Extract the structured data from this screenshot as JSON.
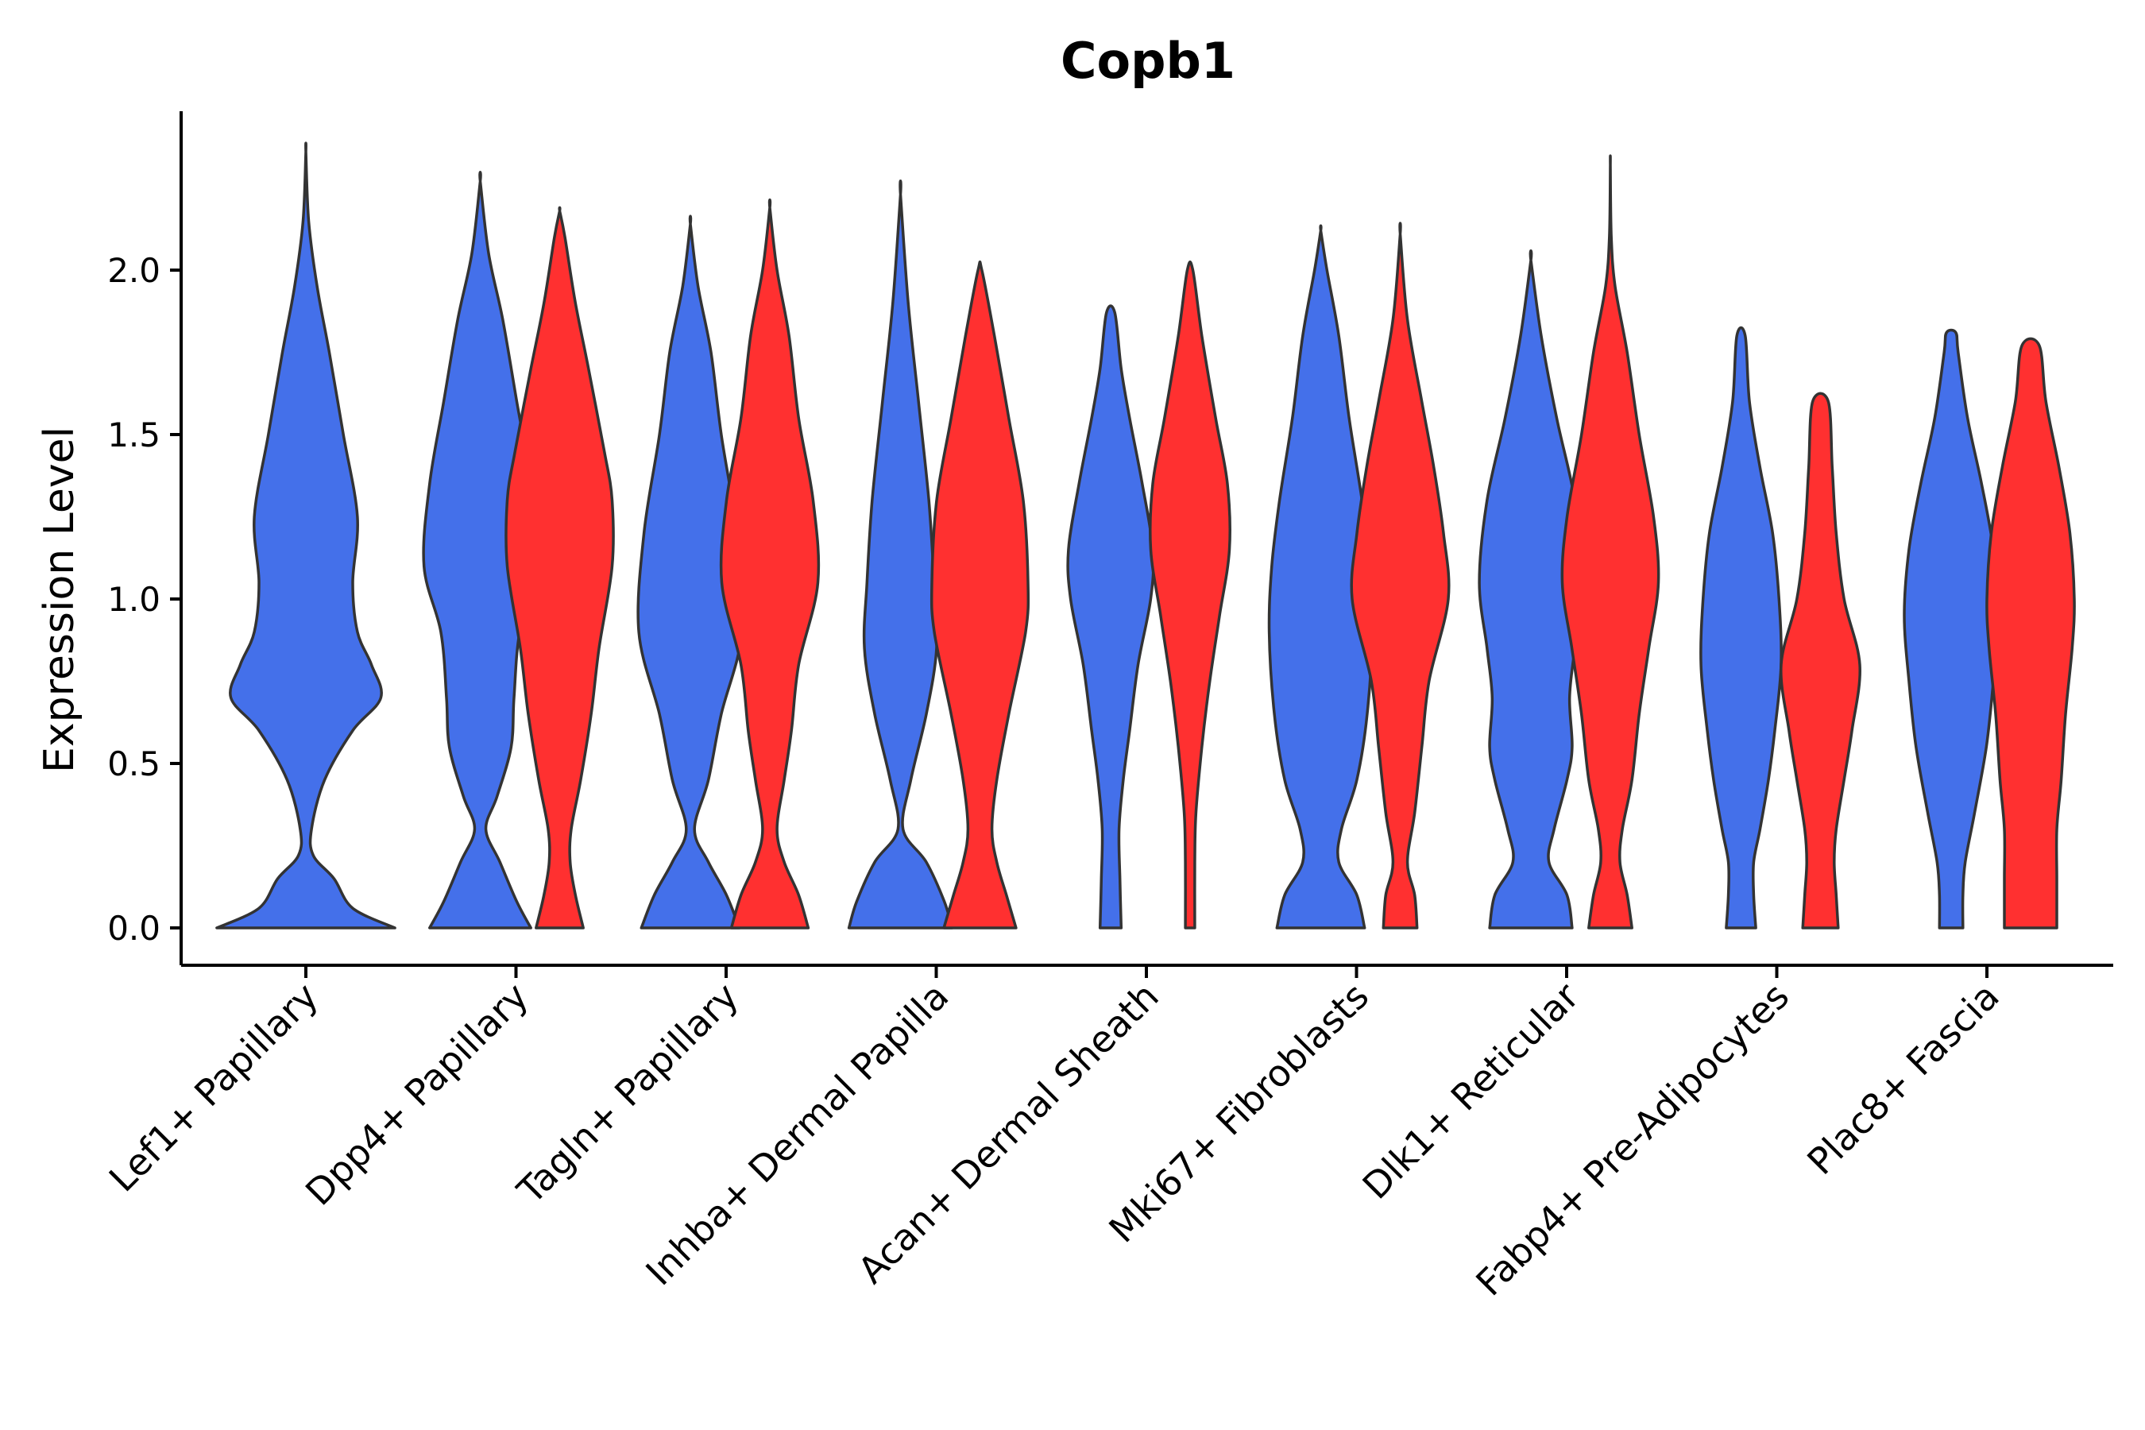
{
  "chart_data": {
    "type": "violin",
    "title": "Copb1",
    "xlabel": "",
    "ylabel": "Expression Level",
    "ylim": [
      -0.12,
      2.45
    ],
    "yticks": [
      0.0,
      0.5,
      1.0,
      1.5,
      2.0
    ],
    "ytick_labels": [
      "0.0",
      "0.5",
      "1.0",
      "1.5",
      "2.0"
    ],
    "categories": [
      "Lef1+ Papillary",
      "Dpp4+ Papillary",
      "Tagln+ Papillary",
      "Inhba+ Dermal Papilla",
      "Acan+ Dermal Sheath",
      "Mki67+ Fibroblasts",
      "Dlk1+ Reticular",
      "Fabp4+ Pre-Adipocytes",
      "Plac8+ Fascia"
    ],
    "series_colors": {
      "blue": "#4470EA",
      "red": "#FF3030"
    },
    "violins": [
      {
        "category": "Lef1+ Papillary",
        "group": "blue",
        "max": 2.36,
        "profile": [
          [
            0.0,
            0.95
          ],
          [
            0.06,
            0.5
          ],
          [
            0.15,
            0.3
          ],
          [
            0.22,
            0.08
          ],
          [
            0.3,
            0.06
          ],
          [
            0.45,
            0.2
          ],
          [
            0.6,
            0.5
          ],
          [
            0.7,
            0.8
          ],
          [
            0.8,
            0.7
          ],
          [
            0.9,
            0.55
          ],
          [
            1.05,
            0.5
          ],
          [
            1.25,
            0.55
          ],
          [
            1.5,
            0.4
          ],
          [
            1.75,
            0.25
          ],
          [
            1.95,
            0.12
          ],
          [
            2.15,
            0.03
          ],
          [
            2.36,
            0.0
          ]
        ]
      },
      {
        "category": "Dpp4+ Papillary",
        "group": "blue",
        "max": 2.27,
        "profile": [
          [
            0.0,
            0.9
          ],
          [
            0.08,
            0.65
          ],
          [
            0.2,
            0.35
          ],
          [
            0.3,
            0.1
          ],
          [
            0.4,
            0.3
          ],
          [
            0.55,
            0.55
          ],
          [
            0.7,
            0.6
          ],
          [
            0.9,
            0.7
          ],
          [
            1.1,
            1.0
          ],
          [
            1.35,
            0.9
          ],
          [
            1.6,
            0.65
          ],
          [
            1.85,
            0.4
          ],
          [
            2.05,
            0.15
          ],
          [
            2.27,
            0.0
          ]
        ]
      },
      {
        "category": "Dpp4+ Papillary",
        "group": "red",
        "max": 2.18,
        "profile": [
          [
            0.0,
            0.45
          ],
          [
            0.1,
            0.3
          ],
          [
            0.2,
            0.2
          ],
          [
            0.3,
            0.22
          ],
          [
            0.45,
            0.4
          ],
          [
            0.65,
            0.6
          ],
          [
            0.85,
            0.75
          ],
          [
            1.1,
            1.0
          ],
          [
            1.3,
            1.0
          ],
          [
            1.45,
            0.85
          ],
          [
            1.7,
            0.55
          ],
          [
            1.9,
            0.3
          ],
          [
            2.1,
            0.1
          ],
          [
            2.18,
            0.0
          ]
        ]
      },
      {
        "category": "Tagln+ Papillary",
        "group": "blue",
        "max": 2.14,
        "profile": [
          [
            0.0,
            0.95
          ],
          [
            0.1,
            0.7
          ],
          [
            0.2,
            0.35
          ],
          [
            0.3,
            0.08
          ],
          [
            0.45,
            0.35
          ],
          [
            0.65,
            0.6
          ],
          [
            0.9,
            1.0
          ],
          [
            1.2,
            0.9
          ],
          [
            1.5,
            0.6
          ],
          [
            1.75,
            0.4
          ],
          [
            1.95,
            0.15
          ],
          [
            2.14,
            0.0
          ]
        ]
      },
      {
        "category": "Tagln+ Papillary",
        "group": "red",
        "max": 2.19,
        "profile": [
          [
            0.0,
            0.8
          ],
          [
            0.1,
            0.6
          ],
          [
            0.2,
            0.3
          ],
          [
            0.3,
            0.15
          ],
          [
            0.45,
            0.3
          ],
          [
            0.6,
            0.45
          ],
          [
            0.8,
            0.6
          ],
          [
            1.05,
            1.0
          ],
          [
            1.3,
            0.9
          ],
          [
            1.55,
            0.6
          ],
          [
            1.8,
            0.4
          ],
          [
            2.0,
            0.15
          ],
          [
            2.19,
            0.0
          ]
        ]
      },
      {
        "category": "Inhba+ Dermal Papilla",
        "group": "blue",
        "max": 2.23,
        "profile": [
          [
            0.0,
            1.0
          ],
          [
            0.08,
            0.85
          ],
          [
            0.2,
            0.5
          ],
          [
            0.3,
            0.05
          ],
          [
            0.45,
            0.2
          ],
          [
            0.65,
            0.5
          ],
          [
            0.85,
            0.7
          ],
          [
            1.05,
            0.65
          ],
          [
            1.3,
            0.55
          ],
          [
            1.6,
            0.35
          ],
          [
            1.9,
            0.15
          ],
          [
            2.23,
            0.0
          ]
        ]
      },
      {
        "category": "Inhba+ Dermal Papilla",
        "group": "red",
        "max": 2.0,
        "profile": [
          [
            0.0,
            0.75
          ],
          [
            0.1,
            0.55
          ],
          [
            0.2,
            0.35
          ],
          [
            0.3,
            0.25
          ],
          [
            0.45,
            0.35
          ],
          [
            0.65,
            0.6
          ],
          [
            0.9,
            0.95
          ],
          [
            1.05,
            1.0
          ],
          [
            1.3,
            0.9
          ],
          [
            1.55,
            0.6
          ],
          [
            1.8,
            0.3
          ],
          [
            2.0,
            0.04
          ]
        ]
      },
      {
        "category": "Acan+ Dermal Sheath",
        "group": "blue",
        "max": 1.87,
        "profile": [
          [
            0.0,
            0.25
          ],
          [
            0.15,
            0.22
          ],
          [
            0.3,
            0.2
          ],
          [
            0.45,
            0.3
          ],
          [
            0.6,
            0.45
          ],
          [
            0.8,
            0.65
          ],
          [
            1.0,
            0.95
          ],
          [
            1.15,
            1.0
          ],
          [
            1.35,
            0.75
          ],
          [
            1.55,
            0.45
          ],
          [
            1.7,
            0.25
          ],
          [
            1.87,
            0.1
          ]
        ]
      },
      {
        "category": "Acan+ Dermal Sheath",
        "group": "red",
        "max": 2.0,
        "profile": [
          [
            0.0,
            0.12
          ],
          [
            0.2,
            0.12
          ],
          [
            0.35,
            0.15
          ],
          [
            0.55,
            0.3
          ],
          [
            0.75,
            0.5
          ],
          [
            0.95,
            0.75
          ],
          [
            1.15,
            1.0
          ],
          [
            1.35,
            0.95
          ],
          [
            1.55,
            0.65
          ],
          [
            1.8,
            0.3
          ],
          [
            2.0,
            0.07
          ]
        ]
      },
      {
        "category": "Mki67+ Fibroblasts",
        "group": "blue",
        "max": 2.12,
        "profile": [
          [
            0.0,
            0.85
          ],
          [
            0.1,
            0.7
          ],
          [
            0.2,
            0.35
          ],
          [
            0.3,
            0.4
          ],
          [
            0.45,
            0.7
          ],
          [
            0.65,
            0.9
          ],
          [
            0.9,
            1.0
          ],
          [
            1.1,
            0.95
          ],
          [
            1.3,
            0.8
          ],
          [
            1.55,
            0.55
          ],
          [
            1.8,
            0.35
          ],
          [
            2.0,
            0.12
          ],
          [
            2.12,
            0.0
          ]
        ]
      },
      {
        "category": "Mki67+ Fibroblasts",
        "group": "red",
        "max": 2.11,
        "profile": [
          [
            0.0,
            0.35
          ],
          [
            0.1,
            0.3
          ],
          [
            0.2,
            0.15
          ],
          [
            0.35,
            0.3
          ],
          [
            0.55,
            0.45
          ],
          [
            0.75,
            0.6
          ],
          [
            1.0,
            1.0
          ],
          [
            1.2,
            0.9
          ],
          [
            1.4,
            0.7
          ],
          [
            1.6,
            0.45
          ],
          [
            1.85,
            0.15
          ],
          [
            2.11,
            0.0
          ]
        ]
      },
      {
        "category": "Dlk1+ Reticular",
        "group": "blue",
        "max": 2.03,
        "profile": [
          [
            0.0,
            0.8
          ],
          [
            0.1,
            0.7
          ],
          [
            0.2,
            0.35
          ],
          [
            0.3,
            0.45
          ],
          [
            0.45,
            0.7
          ],
          [
            0.55,
            0.8
          ],
          [
            0.7,
            0.75
          ],
          [
            0.85,
            0.85
          ],
          [
            1.05,
            1.0
          ],
          [
            1.3,
            0.85
          ],
          [
            1.55,
            0.5
          ],
          [
            1.8,
            0.2
          ],
          [
            2.03,
            0.0
          ]
        ]
      },
      {
        "category": "Dlk1+ Reticular",
        "group": "red",
        "max": 2.32,
        "profile": [
          [
            0.0,
            0.45
          ],
          [
            0.1,
            0.35
          ],
          [
            0.2,
            0.2
          ],
          [
            0.3,
            0.25
          ],
          [
            0.45,
            0.45
          ],
          [
            0.65,
            0.6
          ],
          [
            0.85,
            0.8
          ],
          [
            1.05,
            1.0
          ],
          [
            1.25,
            0.9
          ],
          [
            1.5,
            0.6
          ],
          [
            1.75,
            0.35
          ],
          [
            1.95,
            0.1
          ],
          [
            2.1,
            0.02
          ],
          [
            2.32,
            0.0
          ]
        ]
      },
      {
        "category": "Fabp4+ Pre-Adipocytes",
        "group": "blue",
        "max": 1.8,
        "profile": [
          [
            0.0,
            0.35
          ],
          [
            0.1,
            0.3
          ],
          [
            0.2,
            0.3
          ],
          [
            0.3,
            0.45
          ],
          [
            0.45,
            0.65
          ],
          [
            0.6,
            0.8
          ],
          [
            0.8,
            0.95
          ],
          [
            1.0,
            0.9
          ],
          [
            1.2,
            0.75
          ],
          [
            1.4,
            0.45
          ],
          [
            1.6,
            0.2
          ],
          [
            1.8,
            0.1
          ]
        ]
      },
      {
        "category": "Fabp4+ Pre-Adipocytes",
        "group": "red",
        "max": 1.6,
        "profile": [
          [
            0.0,
            0.45
          ],
          [
            0.1,
            0.4
          ],
          [
            0.2,
            0.35
          ],
          [
            0.3,
            0.4
          ],
          [
            0.45,
            0.6
          ],
          [
            0.6,
            0.8
          ],
          [
            0.8,
            1.0
          ],
          [
            1.0,
            0.6
          ],
          [
            1.2,
            0.4
          ],
          [
            1.4,
            0.3
          ],
          [
            1.6,
            0.2
          ]
        ]
      },
      {
        "category": "Plac8+ Fascia",
        "group": "blue",
        "max": 1.81,
        "profile": [
          [
            0.0,
            0.25
          ],
          [
            0.1,
            0.25
          ],
          [
            0.2,
            0.3
          ],
          [
            0.35,
            0.5
          ],
          [
            0.55,
            0.75
          ],
          [
            0.75,
            0.9
          ],
          [
            0.95,
            1.0
          ],
          [
            1.15,
            0.9
          ],
          [
            1.35,
            0.65
          ],
          [
            1.55,
            0.35
          ],
          [
            1.75,
            0.15
          ],
          [
            1.81,
            0.1
          ]
        ]
      },
      {
        "category": "Plac8+ Fascia",
        "group": "red",
        "max": 1.77,
        "profile": [
          [
            0.0,
            0.6
          ],
          [
            0.15,
            0.6
          ],
          [
            0.3,
            0.6
          ],
          [
            0.45,
            0.7
          ],
          [
            0.65,
            0.8
          ],
          [
            0.85,
            0.95
          ],
          [
            1.0,
            1.0
          ],
          [
            1.2,
            0.9
          ],
          [
            1.4,
            0.65
          ],
          [
            1.6,
            0.35
          ],
          [
            1.77,
            0.2
          ]
        ]
      }
    ]
  }
}
